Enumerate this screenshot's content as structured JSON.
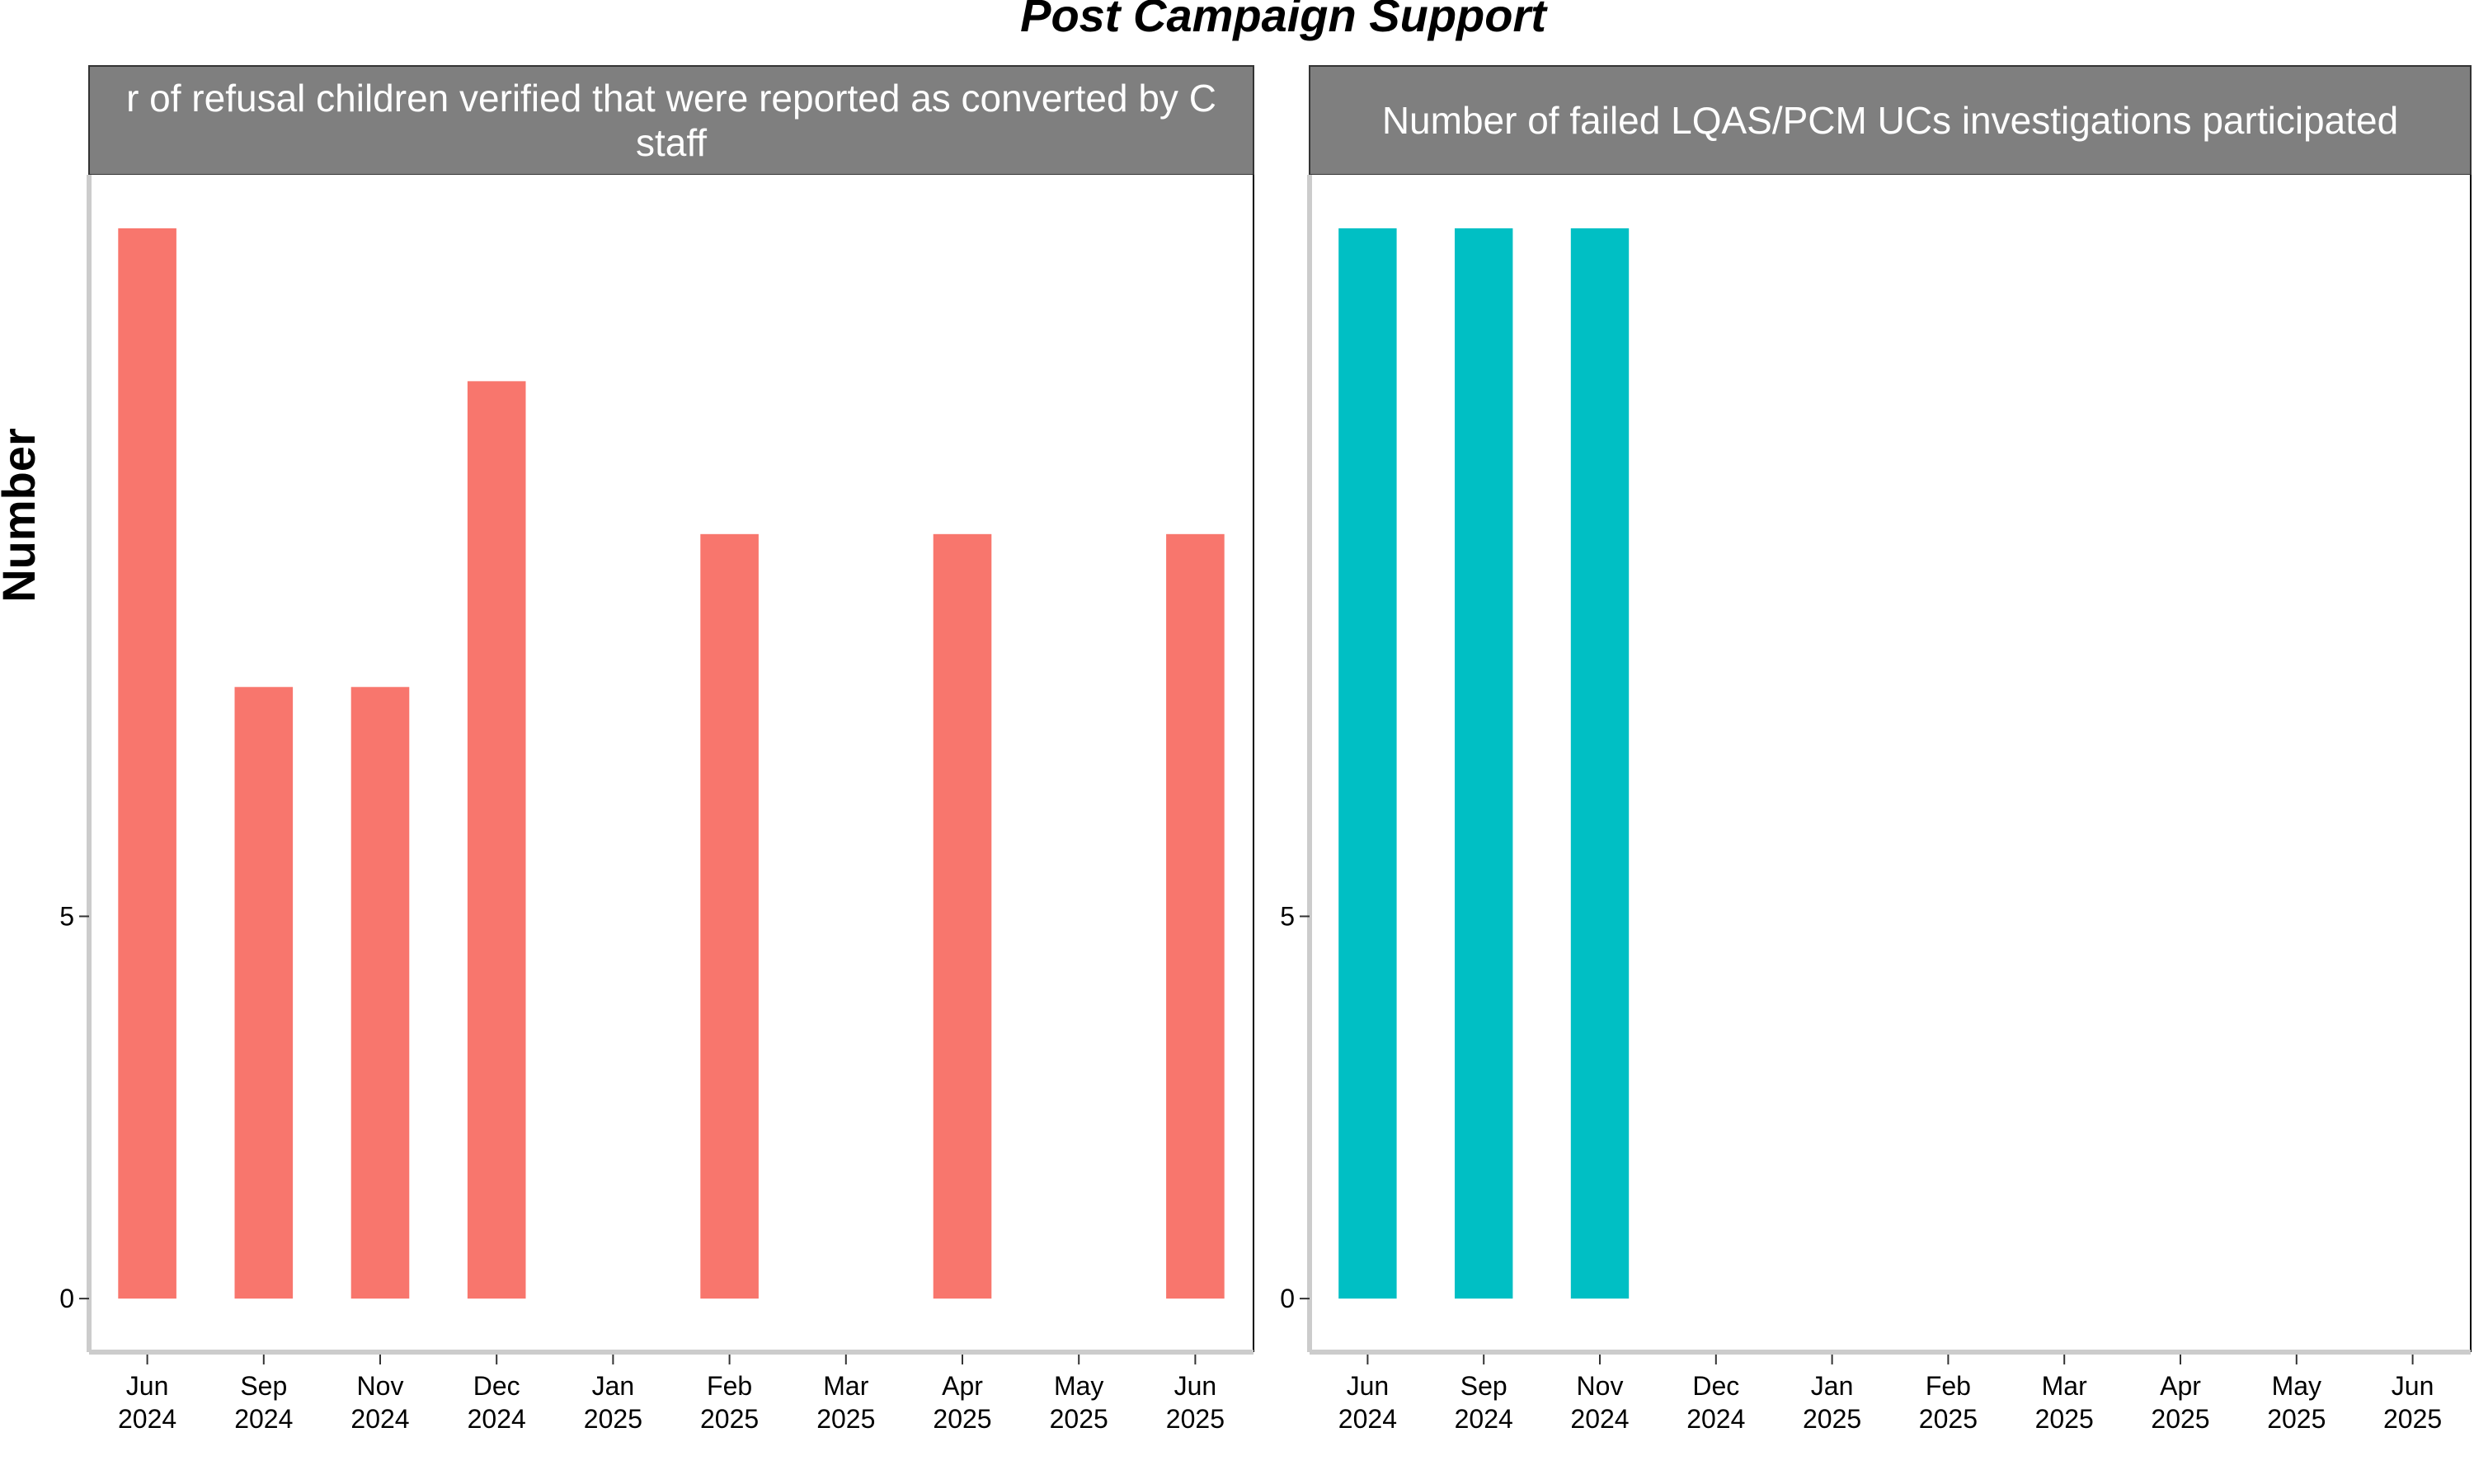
{
  "chart_data": {
    "type": "bar",
    "title": "Post Campaign Support",
    "ylabel": "Number",
    "xlabel": "",
    "ylim": [
      -0.7,
      14.7
    ],
    "yticks": [
      0,
      5
    ],
    "grid": false,
    "legend": "none",
    "categories": [
      [
        "Jun",
        "2024"
      ],
      [
        "Sep",
        "2024"
      ],
      [
        "Nov",
        "2024"
      ],
      [
        "Dec",
        "2024"
      ],
      [
        "Jan",
        "2025"
      ],
      [
        "Feb",
        "2025"
      ],
      [
        "Mar",
        "2025"
      ],
      [
        "Apr",
        "2025"
      ],
      [
        "May",
        "2025"
      ],
      [
        "Jun",
        "2025"
      ]
    ],
    "panels": [
      {
        "strip": [
          "r of refusal children verified that were reported as converted by C",
          "staff"
        ],
        "color": "#F8766D",
        "values": [
          14,
          8,
          8,
          12,
          null,
          10,
          null,
          10,
          null,
          10
        ]
      },
      {
        "strip": [
          "Number of failed LQAS/PCM UCs investigations participated"
        ],
        "color": "#00BFC4",
        "values": [
          14,
          14,
          14,
          null,
          null,
          null,
          null,
          null,
          null,
          null
        ]
      }
    ]
  }
}
